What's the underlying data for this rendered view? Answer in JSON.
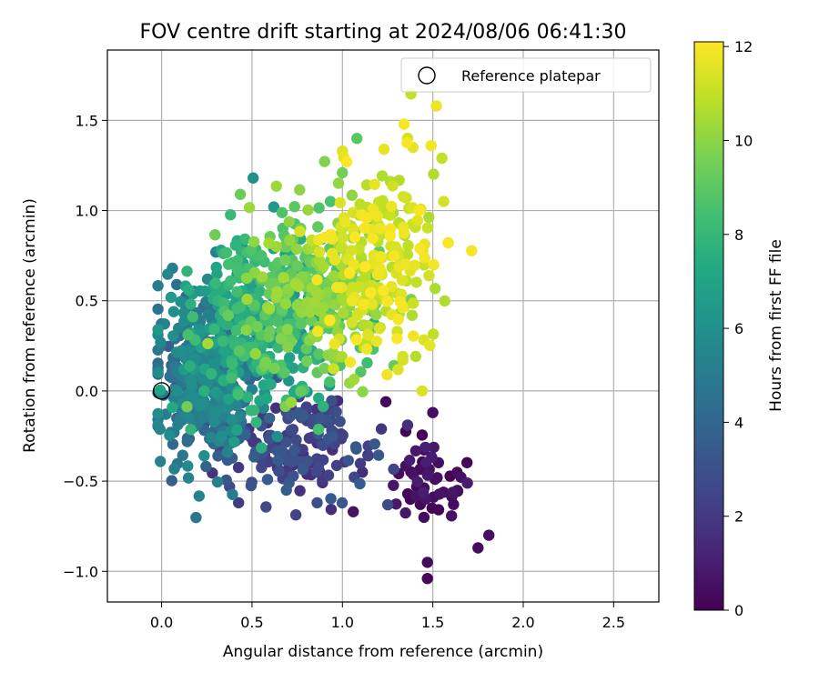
{
  "chart_data": {
    "type": "scatter",
    "title": "FOV centre drift starting at 2024/08/06 06:41:30",
    "xlabel": "Angular distance from reference (arcmin)",
    "ylabel": "Rotation from reference (arcmin)",
    "xlim": [
      -0.3,
      2.75
    ],
    "ylim": [
      -1.17,
      1.89
    ],
    "xticks": [
      0.0,
      0.5,
      1.0,
      1.5,
      2.0,
      2.5
    ],
    "xtick_labels": [
      "0.0",
      "0.5",
      "1.0",
      "1.5",
      "2.0",
      "2.5"
    ],
    "yticks": [
      -1.0,
      -0.5,
      0.0,
      0.5,
      1.0,
      1.5
    ],
    "ytick_labels": [
      "−1.0",
      "−0.5",
      "0.0",
      "0.5",
      "1.0",
      "1.5"
    ],
    "grid": true,
    "legend": {
      "placement": "top-right",
      "entries": [
        "Reference platepar"
      ]
    },
    "reference_point": {
      "x": 0.0,
      "y": 0.0,
      "label": "Reference platepar"
    },
    "colorbar": {
      "label": "Hours from first FF file",
      "min": 0,
      "max": 12.1,
      "ticks": [
        0,
        2,
        4,
        6,
        8,
        10,
        12
      ],
      "tick_labels": [
        "0",
        "2",
        "4",
        "6",
        "8",
        "10",
        "12"
      ],
      "colormap": "viridis"
    },
    "clusters": [
      {
        "name": "",
        "hours": [
          0.0,
          1.0
        ],
        "x_mean": 1.45,
        "x_sd": 0.12,
        "y_mean": -0.48,
        "y_sd": 0.16,
        "count": 50
      },
      {
        "name": "",
        "hours": [
          1.5,
          3.5
        ],
        "x_mean": 0.75,
        "x_sd": 0.22,
        "y_mean": -0.3,
        "y_sd": 0.15,
        "count": 160
      },
      {
        "name": "",
        "hours": [
          3.5,
          6.0
        ],
        "x_mean": 0.25,
        "x_sd": 0.14,
        "y_mean": 0.05,
        "y_sd": 0.22,
        "count": 420
      },
      {
        "name": "",
        "hours": [
          6.0,
          8.5
        ],
        "x_mean": 0.5,
        "x_sd": 0.2,
        "y_mean": 0.35,
        "y_sd": 0.25,
        "count": 320
      },
      {
        "name": "",
        "hours": [
          8.5,
          10.5
        ],
        "x_mean": 0.85,
        "x_sd": 0.2,
        "y_mean": 0.55,
        "y_sd": 0.25,
        "count": 260
      },
      {
        "name": "",
        "hours": [
          10.5,
          12.1
        ],
        "x_mean": 1.2,
        "x_sd": 0.16,
        "y_mean": 0.72,
        "y_sd": 0.28,
        "count": 220
      }
    ],
    "points": [
      {
        "x": 1.47,
        "y": -1.04,
        "h": 0.2
      },
      {
        "x": 1.47,
        "y": -0.95,
        "h": 0.3
      },
      {
        "x": 1.75,
        "y": -0.87,
        "h": 0.4
      },
      {
        "x": 1.81,
        "y": -0.8,
        "h": 0.5
      },
      {
        "x": 1.06,
        "y": -0.67,
        "h": 0.6
      },
      {
        "x": 1.5,
        "y": -0.12,
        "h": 0.4
      },
      {
        "x": 1.24,
        "y": -0.06,
        "h": 0.3
      },
      {
        "x": 1.52,
        "y": 1.58,
        "h": 11.8
      },
      {
        "x": 1.08,
        "y": 1.4,
        "h": 9.0
      },
      {
        "x": 1.0,
        "y": 1.33,
        "h": 11.5
      },
      {
        "x": 1.23,
        "y": 1.34,
        "h": 11.7
      },
      {
        "x": 1.49,
        "y": 1.36,
        "h": 11.9
      },
      {
        "x": 1.39,
        "y": 1.35,
        "h": 11.6
      },
      {
        "x": 1.55,
        "y": 1.29,
        "h": 11.0
      },
      {
        "x": 1.0,
        "y": 1.21,
        "h": 9.5
      },
      {
        "x": 1.56,
        "y": 1.05,
        "h": 11.3
      },
      {
        "x": 0.86,
        "y": -0.62,
        "h": 2.9
      },
      {
        "x": 0.69,
        "y": -0.55,
        "h": 3.6
      },
      {
        "x": 0.06,
        "y": 0.68,
        "h": 5.0
      },
      {
        "x": 0.3,
        "y": 0.77,
        "h": 5.3
      },
      {
        "x": 0.0,
        "y": 0.25,
        "h": 4.2
      }
    ]
  }
}
